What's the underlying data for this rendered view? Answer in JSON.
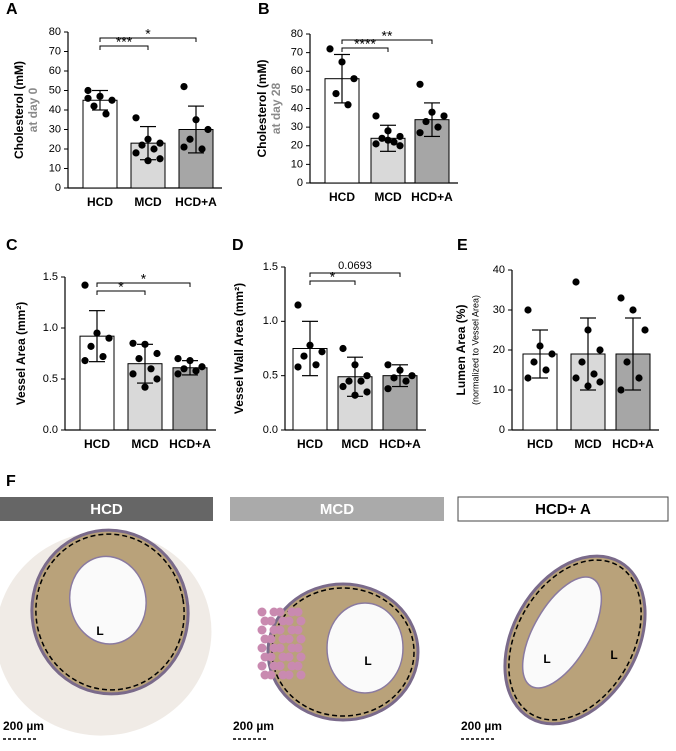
{
  "chart_data": [
    {
      "type": "bar",
      "panel": "A",
      "ylabel": "Cholesterol (mM)",
      "ylabel2": "at day 0",
      "categories": [
        "HCD",
        "MCD",
        "HCD+A"
      ],
      "colors": [
        "#ffffff",
        "#d9d9d9",
        "#a6a6a6"
      ],
      "values": [
        45,
        23,
        30
      ],
      "errors": [
        5,
        8.5,
        12
      ],
      "points": [
        [
          50,
          47,
          45,
          42,
          38,
          46
        ],
        [
          36,
          25,
          23,
          22,
          20,
          18,
          15,
          14
        ],
        [
          52,
          35,
          30,
          25,
          20,
          21
        ]
      ],
      "ylim": [
        0,
        80
      ],
      "yticks": [
        0,
        10,
        20,
        30,
        40,
        50,
        60,
        70,
        80
      ],
      "comparisons": [
        {
          "pair": [
            "HCD",
            "MCD"
          ],
          "label": "***"
        },
        {
          "pair": [
            "HCD",
            "HCD+A"
          ],
          "label": "*"
        }
      ]
    },
    {
      "type": "bar",
      "panel": "B",
      "ylabel": "Cholesterol (mM)",
      "ylabel2": "at day 28",
      "categories": [
        "HCD",
        "MCD",
        "HCD+A"
      ],
      "colors": [
        "#ffffff",
        "#d9d9d9",
        "#a6a6a6"
      ],
      "values": [
        56,
        24,
        34
      ],
      "errors": [
        13,
        7,
        9
      ],
      "points": [
        [
          72,
          65,
          56,
          48,
          42
        ],
        [
          36,
          28,
          25,
          24,
          22,
          21,
          20,
          23
        ],
        [
          53,
          38,
          36,
          33,
          30,
          27
        ]
      ],
      "ylim": [
        0,
        80
      ],
      "yticks": [
        0,
        10,
        20,
        30,
        40,
        50,
        60,
        70,
        80
      ],
      "comparisons": [
        {
          "pair": [
            "HCD",
            "MCD"
          ],
          "label": "****"
        },
        {
          "pair": [
            "HCD",
            "HCD+A"
          ],
          "label": "**"
        }
      ]
    },
    {
      "type": "bar",
      "panel": "C",
      "ylabel": "Vessel Area (mm²)",
      "categories": [
        "HCD",
        "MCD",
        "HCD+A"
      ],
      "colors": [
        "#ffffff",
        "#d9d9d9",
        "#a6a6a6"
      ],
      "values": [
        0.92,
        0.65,
        0.61
      ],
      "errors": [
        0.25,
        0.19,
        0.07
      ],
      "points": [
        [
          1.42,
          0.95,
          0.9,
          0.82,
          0.72,
          0.68
        ],
        [
          0.85,
          0.84,
          0.75,
          0.7,
          0.6,
          0.55,
          0.5,
          0.42
        ],
        [
          0.7,
          0.68,
          0.62,
          0.6,
          0.58,
          0.55
        ]
      ],
      "ylim": [
        0,
        1.5
      ],
      "yticks": [
        {
          "value": 0,
          "label": "0.0"
        },
        0.5,
        {
          "value": 1,
          "label": "1.0"
        },
        1.5
      ],
      "comparisons": [
        {
          "pair": [
            "HCD",
            "MCD"
          ],
          "label": "*"
        },
        {
          "pair": [
            "HCD",
            "HCD+A"
          ],
          "label": "*"
        }
      ]
    },
    {
      "type": "bar",
      "panel": "D",
      "ylabel": "Vessel Wall Area (mm²)",
      "categories": [
        "HCD",
        "MCD",
        "HCD+A"
      ],
      "colors": [
        "#ffffff",
        "#d9d9d9",
        "#a6a6a6"
      ],
      "values": [
        0.75,
        0.49,
        0.5
      ],
      "errors": [
        0.25,
        0.18,
        0.1
      ],
      "points": [
        [
          1.15,
          0.78,
          0.72,
          0.68,
          0.6,
          0.58
        ],
        [
          0.75,
          0.6,
          0.5,
          0.45,
          0.45,
          0.4,
          0.35,
          0.32
        ],
        [
          0.6,
          0.55,
          0.5,
          0.48,
          0.45,
          0.38
        ]
      ],
      "ylim": [
        0,
        1.5
      ],
      "yticks": [
        {
          "value": 0,
          "label": "0.0"
        },
        0.5,
        {
          "value": 1,
          "label": "1.0"
        },
        1.5
      ],
      "comparisons": [
        {
          "pair": [
            "HCD",
            "MCD"
          ],
          "label": "*"
        },
        {
          "pair": [
            "HCD",
            "HCD+A"
          ],
          "label": "0.0693"
        }
      ]
    },
    {
      "type": "bar",
      "panel": "E",
      "ylabel": "Lumen Area (%)",
      "ylabel2": "(normalized to Vessel Area)",
      "categories": [
        "HCD",
        "MCD",
        "HCD+A"
      ],
      "colors": [
        "#ffffff",
        "#d9d9d9",
        "#a6a6a6"
      ],
      "values": [
        19,
        19,
        19
      ],
      "errors": [
        6,
        9,
        9
      ],
      "points": [
        [
          30,
          21,
          19,
          17,
          15,
          13
        ],
        [
          37,
          25,
          20,
          17,
          14,
          13,
          12,
          11
        ],
        [
          33,
          30,
          25,
          17,
          13,
          10
        ]
      ],
      "ylim": [
        0,
        40
      ],
      "yticks": [
        0,
        10,
        20,
        30,
        40
      ],
      "comparisons": []
    }
  ],
  "histology": {
    "panel": "F",
    "panels": [
      {
        "title": "HCD",
        "lumen_labels": [
          "L"
        ],
        "scale": "200 µm"
      },
      {
        "title": "MCD",
        "lumen_labels": [
          "L"
        ],
        "scale": "200 µm"
      },
      {
        "title": "HCD+ A",
        "lumen_labels": [
          "L",
          "L"
        ],
        "scale": "200 µm"
      }
    ]
  }
}
